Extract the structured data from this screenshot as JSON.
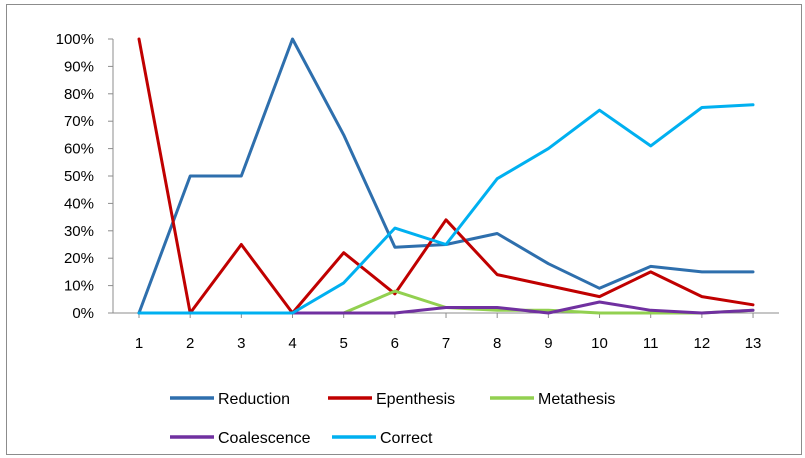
{
  "chart_data": {
    "type": "line",
    "categories": [
      "1",
      "2",
      "3",
      "4",
      "5",
      "6",
      "7",
      "8",
      "9",
      "10",
      "11",
      "12",
      "13"
    ],
    "ylim": [
      0,
      100
    ],
    "y_ticks": [
      "0%",
      "10%",
      "20%",
      "30%",
      "40%",
      "50%",
      "60%",
      "70%",
      "80%",
      "90%",
      "100%"
    ],
    "grid": false,
    "legend_position": "bottom",
    "series": [
      {
        "name": "Reduction",
        "color": "#2e6fad",
        "values": [
          0,
          50,
          50,
          100,
          65,
          24,
          25,
          29,
          18,
          9,
          17,
          15,
          15
        ]
      },
      {
        "name": "Epenthesis",
        "color": "#c00000",
        "values": [
          100,
          0,
          25,
          0,
          22,
          7,
          34,
          14,
          10,
          6,
          15,
          6,
          3
        ]
      },
      {
        "name": "Metathesis",
        "color": "#92d050",
        "values": [
          0,
          0,
          0,
          0,
          0,
          8,
          2,
          1,
          1,
          0,
          0,
          0,
          1
        ]
      },
      {
        "name": "Coalescence",
        "color": "#7030a0",
        "values": [
          0,
          0,
          0,
          0,
          0,
          0,
          2,
          2,
          0,
          4,
          1,
          0,
          1
        ]
      },
      {
        "name": "Correct",
        "color": "#00b0f0",
        "values": [
          0,
          0,
          0,
          0,
          11,
          31,
          25,
          49,
          60,
          74,
          61,
          75,
          76
        ]
      }
    ]
  }
}
